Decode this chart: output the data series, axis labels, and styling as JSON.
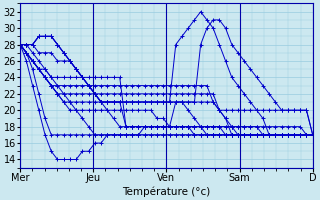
{
  "xlabel": "Température (°c)",
  "ylim": [
    13,
    33
  ],
  "yticks": [
    14,
    16,
    18,
    20,
    22,
    24,
    26,
    28,
    30,
    32
  ],
  "xlim": [
    0,
    96
  ],
  "xtick_positions": [
    0,
    24,
    48,
    72,
    96
  ],
  "xtick_labels": [
    "Mer",
    "Jeu",
    "Ven",
    "Sam",
    "D"
  ],
  "bg_color": "#cce8f0",
  "grid_color": "#99cce0",
  "line_color": "#0000cc",
  "series": [
    [
      28,
      28,
      27,
      26,
      25,
      24,
      23,
      22,
      21,
      20,
      19,
      18,
      17,
      17,
      17,
      17,
      17,
      17,
      17,
      17,
      17,
      17,
      17,
      17,
      17,
      17,
      17,
      17,
      17,
      17,
      17,
      17,
      17,
      17,
      17,
      17,
      17,
      17,
      17,
      17,
      17,
      17,
      17,
      17,
      17,
      17,
      17,
      17
    ],
    [
      28,
      27,
      25,
      22,
      19,
      17,
      17,
      17,
      17,
      17,
      17,
      17,
      17,
      17,
      17,
      17,
      17,
      17,
      17,
      17,
      17,
      17,
      17,
      17,
      17,
      17,
      17,
      17,
      17,
      17,
      17,
      17,
      17,
      17,
      17,
      17,
      17,
      17,
      17,
      17,
      17,
      17,
      17,
      17,
      17,
      17,
      17,
      17
    ],
    [
      28,
      26,
      23,
      20,
      17,
      15,
      14,
      14,
      14,
      14,
      15,
      15,
      16,
      16,
      17,
      17,
      17,
      17,
      17,
      17,
      18,
      18,
      18,
      18,
      18,
      18,
      18,
      18,
      17,
      17,
      17,
      17,
      17,
      17,
      17,
      17,
      17,
      17,
      17,
      17,
      17,
      17,
      17,
      17,
      17,
      17,
      17,
      17
    ],
    [
      28,
      27,
      26,
      25,
      24,
      23,
      22,
      22,
      22,
      22,
      22,
      22,
      22,
      22,
      22,
      22,
      22,
      22,
      22,
      22,
      22,
      22,
      22,
      22,
      22,
      22,
      22,
      22,
      22,
      22,
      22,
      22,
      20,
      19,
      18,
      17,
      17,
      17,
      17,
      17,
      17,
      17,
      17,
      17,
      17,
      17,
      17,
      17
    ],
    [
      28,
      27,
      26,
      25,
      24,
      23,
      22,
      21,
      21,
      21,
      21,
      21,
      21,
      21,
      21,
      21,
      21,
      21,
      21,
      21,
      21,
      21,
      21,
      21,
      21,
      21,
      21,
      21,
      21,
      21,
      21,
      21,
      20,
      19,
      17,
      17,
      17,
      17,
      17,
      17,
      17,
      17,
      17,
      17,
      17,
      17,
      17,
      17
    ],
    [
      28,
      27,
      26,
      25,
      24,
      23,
      23,
      23,
      23,
      23,
      23,
      23,
      23,
      23,
      23,
      23,
      23,
      23,
      23,
      23,
      23,
      23,
      23,
      23,
      23,
      23,
      23,
      23,
      23,
      23,
      23,
      21,
      20,
      20,
      20,
      20,
      20,
      20,
      20,
      20,
      20,
      20,
      20,
      20,
      20,
      20,
      20,
      17
    ],
    [
      28,
      27,
      26,
      25,
      24,
      23,
      22,
      21,
      20,
      20,
      20,
      20,
      20,
      20,
      20,
      20,
      20,
      20,
      20,
      20,
      20,
      20,
      19,
      19,
      18,
      18,
      18,
      18,
      18,
      18,
      18,
      18,
      18,
      18,
      18,
      18,
      18,
      18,
      18,
      18,
      18,
      18,
      18,
      18,
      18,
      18,
      17,
      17
    ],
    [
      28,
      28,
      28,
      27,
      27,
      27,
      26,
      26,
      26,
      25,
      24,
      23,
      22,
      21,
      20,
      19,
      18,
      18,
      18,
      18,
      18,
      18,
      18,
      18,
      18,
      18,
      18,
      18,
      18,
      18,
      18,
      18,
      18,
      17,
      17,
      17,
      17,
      17,
      17,
      17,
      17,
      17,
      17,
      17,
      17,
      17,
      17,
      17
    ],
    [
      28,
      28,
      28,
      29,
      29,
      29,
      28,
      27,
      26,
      25,
      24,
      23,
      22,
      21,
      21,
      21,
      21,
      21,
      21,
      21,
      21,
      21,
      21,
      21,
      21,
      21,
      21,
      21,
      21,
      28,
      30,
      31,
      31,
      30,
      28,
      27,
      26,
      25,
      24,
      23,
      22,
      21,
      20,
      20,
      20,
      20,
      20,
      17
    ],
    [
      28,
      28,
      28,
      29,
      29,
      29,
      28,
      27,
      26,
      25,
      24,
      23,
      22,
      21,
      21,
      21,
      21,
      21,
      21,
      21,
      21,
      21,
      21,
      21,
      21,
      28,
      29,
      30,
      31,
      32,
      31,
      30,
      28,
      26,
      24,
      23,
      22,
      21,
      20,
      19,
      17,
      17,
      17,
      17,
      17,
      17,
      17,
      17
    ],
    [
      28,
      28,
      28,
      29,
      29,
      29,
      28,
      27,
      26,
      25,
      24,
      23,
      22,
      21,
      21,
      21,
      21,
      18,
      18,
      18,
      18,
      18,
      18,
      18,
      18,
      21,
      21,
      20,
      19,
      18,
      17,
      17,
      17,
      17,
      17,
      17,
      17,
      17,
      17,
      17,
      17,
      17,
      17,
      17,
      17,
      17,
      17,
      17
    ],
    [
      28,
      27,
      26,
      25,
      25,
      24,
      24,
      24,
      24,
      24,
      24,
      24,
      24,
      24,
      24,
      24,
      24,
      18,
      18,
      18,
      18,
      18,
      18,
      18,
      18,
      18,
      18,
      18,
      18,
      18,
      18,
      18,
      18,
      18,
      18,
      18,
      18,
      18,
      18,
      17,
      17,
      17,
      17,
      17,
      17,
      17,
      17,
      17
    ]
  ]
}
